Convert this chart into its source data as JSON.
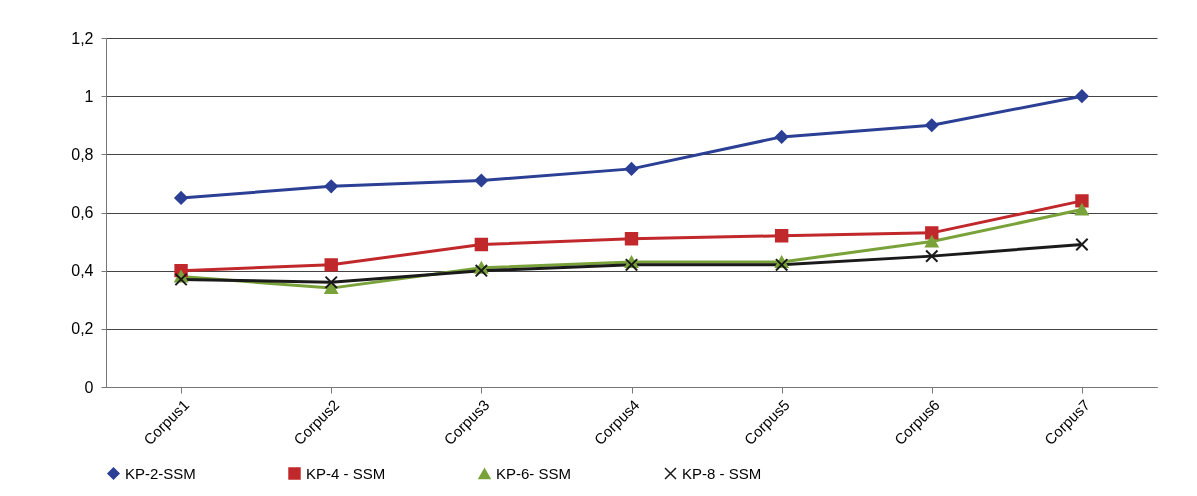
{
  "chart_data": {
    "type": "line",
    "categories": [
      "Corpus1",
      "Corpus2",
      "Corpus3",
      "Corpus4",
      "Corpus5",
      "Corpus6",
      "Corpus7"
    ],
    "series": [
      {
        "name": "KP-2-SSM",
        "color": "#2b3f94",
        "marker": "diamond",
        "values": [
          0.65,
          0.69,
          0.71,
          0.75,
          0.86,
          0.9,
          1.0
        ]
      },
      {
        "name": "KP-4 - SSM",
        "color": "#c0282b",
        "marker": "square",
        "values": [
          0.4,
          0.42,
          0.49,
          0.51,
          0.52,
          0.53,
          0.64
        ]
      },
      {
        "name": "KP-6- SSM",
        "color": "#7aa23a",
        "marker": "triangle",
        "values": [
          0.38,
          0.34,
          0.41,
          0.43,
          0.43,
          0.5,
          0.61
        ]
      },
      {
        "name": "KP-8 - SSM",
        "color": "#1a1a1a",
        "marker": "cross",
        "values": [
          0.37,
          0.36,
          0.4,
          0.42,
          0.42,
          0.45,
          0.49
        ]
      }
    ],
    "ylim": [
      0,
      1.2
    ],
    "yticks": [
      0,
      {
        "value": 0.2,
        "label": "0,2"
      },
      {
        "value": 0.4,
        "label": "0,4"
      },
      {
        "value": 0.6,
        "label": "0,6"
      },
      {
        "value": 0.8,
        "label": "0,8"
      },
      1,
      {
        "value": 1.2,
        "label": "1,2"
      }
    ],
    "grid": "y",
    "legend": "bottom"
  }
}
